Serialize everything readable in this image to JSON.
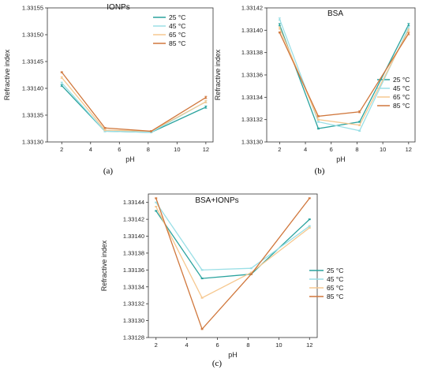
{
  "chart_data": [
    {
      "type": "line",
      "panel_label": "(a)",
      "title": "IONPs",
      "xlabel": "pH",
      "ylabel": "Refractive index",
      "xlim": [
        1,
        12.5
      ],
      "ylim": [
        1.3313,
        1.33155
      ],
      "x_ticks": [
        2,
        4,
        6,
        8,
        10,
        12
      ],
      "y_ticks": [
        "1.33130",
        "1.33135",
        "1.33140",
        "1.33145",
        "1.33150",
        "1.33155"
      ],
      "legend_position": "top-right",
      "x": [
        2,
        5,
        8.2,
        12
      ],
      "series": [
        {
          "name": "25 °C",
          "color": "#2aa39e",
          "values": [
            1.331405,
            1.33132,
            1.331318,
            1.331365
          ],
          "error": [
            1.5e-06,
            1e-06,
            1e-06,
            2e-06
          ]
        },
        {
          "name": "45 °C",
          "color": "#9adfe6",
          "values": [
            1.33141,
            1.33132,
            1.331318,
            1.331375
          ],
          "error": [
            1.5e-06,
            1e-06,
            1e-06,
            2e-06
          ]
        },
        {
          "name": "65 °C",
          "color": "#f6c890",
          "values": [
            1.33142,
            1.331322,
            1.33132,
            1.331375
          ],
          "error": [
            1.5e-06,
            1e-06,
            1e-06,
            2e-06
          ]
        },
        {
          "name": "85 °C",
          "color": "#d0773c",
          "values": [
            1.33143,
            1.331326,
            1.33132,
            1.331383
          ],
          "error": [
            1e-06,
            1e-06,
            1e-06,
            2e-06
          ]
        }
      ]
    },
    {
      "type": "line",
      "panel_label": "(b)",
      "title": "BSA",
      "xlabel": "pH",
      "ylabel": "Refractive index",
      "xlim": [
        1,
        12.5
      ],
      "ylim": [
        1.3313,
        1.33142
      ],
      "x_ticks": [
        2,
        4,
        6,
        8,
        10,
        12
      ],
      "y_ticks": [
        "1.33130",
        "1.33132",
        "1.33134",
        "1.33136",
        "1.33138",
        "1.33140",
        "1.33142"
      ],
      "legend_position": "right",
      "x": [
        2,
        5,
        8.2,
        12
      ],
      "series": [
        {
          "name": "25 °C",
          "color": "#2aa39e",
          "values": [
            1.331405,
            1.331312,
            1.331318,
            1.331405
          ],
          "error": [
            1e-06,
            5e-07,
            5e-07,
            1e-06
          ]
        },
        {
          "name": "45 °C",
          "color": "#9adfe6",
          "values": [
            1.33141,
            1.331318,
            1.33131,
            1.331402
          ],
          "error": [
            1e-06,
            5e-07,
            5e-07,
            1e-06
          ]
        },
        {
          "name": "65 °C",
          "color": "#f6c890",
          "values": [
            1.331402,
            1.33132,
            1.331315,
            1.3314
          ],
          "error": [
            1e-06,
            5e-07,
            5e-07,
            1e-06
          ]
        },
        {
          "name": "85 °C",
          "color": "#d0773c",
          "values": [
            1.331398,
            1.331323,
            1.331327,
            1.331397
          ],
          "error": [
            5e-07,
            5e-07,
            8e-07,
            1e-06
          ]
        }
      ]
    },
    {
      "type": "line",
      "panel_label": "(c)",
      "title": "BSA+IONPs",
      "xlabel": "pH",
      "ylabel": "Refractive index",
      "xlim": [
        1.5,
        12.5
      ],
      "ylim": [
        1.33128,
        1.33145
      ],
      "x_ticks": [
        2,
        4,
        6,
        8,
        10,
        12
      ],
      "y_ticks": [
        "1.33128",
        "1.33130",
        "1.33132",
        "1.33134",
        "1.33136",
        "1.33138",
        "1.33140",
        "1.33142",
        "1.33144"
      ],
      "legend_position": "bottom-right",
      "x": [
        2,
        5,
        8.2,
        12
      ],
      "series": [
        {
          "name": "25 °C",
          "color": "#2aa39e",
          "values": [
            1.33143,
            1.33135,
            1.331355,
            1.33142
          ],
          "error": [
            5e-07,
            5e-07,
            5e-07,
            5e-07
          ]
        },
        {
          "name": "45 °C",
          "color": "#9adfe6",
          "values": [
            1.33144,
            1.33136,
            1.331362,
            1.331412
          ],
          "error": [
            5e-07,
            5e-07,
            5e-07,
            5e-07
          ]
        },
        {
          "name": "65 °C",
          "color": "#f6c890",
          "values": [
            1.331435,
            1.331327,
            1.331357,
            1.33141
          ],
          "error": [
            5e-07,
            5e-07,
            5e-07,
            5e-07
          ]
        },
        {
          "name": "85 °C",
          "color": "#d0773c",
          "values": [
            1.331445,
            1.33129,
            1.331355,
            1.331445
          ],
          "error": [
            5e-07,
            5e-07,
            5e-07,
            5e-07
          ]
        }
      ]
    }
  ]
}
